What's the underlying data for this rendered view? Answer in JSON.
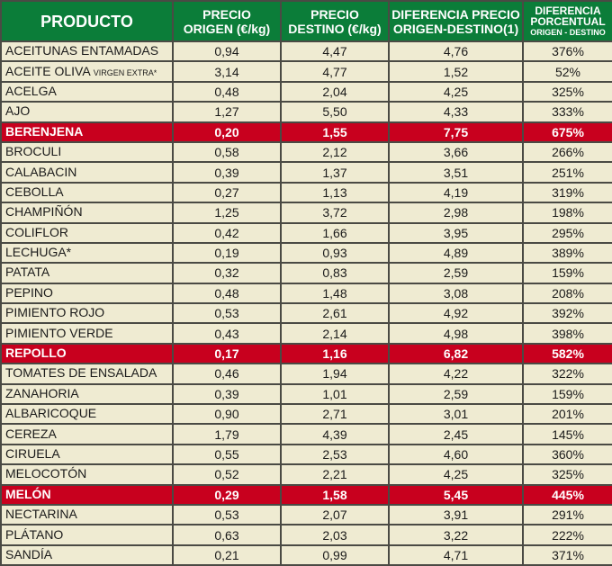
{
  "colors": {
    "header": "#0b7d39",
    "cell": "#efebd2",
    "highlight": "#c8001e"
  },
  "headers": {
    "product": "PRODUCTO",
    "origin_1": "PRECIO",
    "origin_2": "ORIGEN (€/kg)",
    "dest_1": "PRECIO",
    "dest_2": "DESTINO (€/kg)",
    "diff_1": "DIFERENCIA PRECIO",
    "diff_2": "ORIGEN-DESTINO(1)",
    "pct_1": "DIFERENCIA",
    "pct_2": "PORCENTUAL",
    "pct_3": "ORIGEN - DESTINO"
  },
  "rows": [
    {
      "name": "ACEITUNAS ENTAMADAS",
      "suffix": "",
      "origin": "0,94",
      "dest": "4,47",
      "diff": "4,76",
      "pct": "376%",
      "highlight": false
    },
    {
      "name": "ACEITE OLIVA ",
      "suffix": "VIRGEN EXTRA*",
      "origin": "3,14",
      "dest": "4,77",
      "diff": "1,52",
      "pct": "52%",
      "highlight": false
    },
    {
      "name": "ACELGA",
      "suffix": "",
      "origin": "0,48",
      "dest": "2,04",
      "diff": "4,25",
      "pct": "325%",
      "highlight": false
    },
    {
      "name": "AJO",
      "suffix": "",
      "origin": "1,27",
      "dest": "5,50",
      "diff": "4,33",
      "pct": "333%",
      "highlight": false
    },
    {
      "name": "BERENJENA",
      "suffix": "",
      "origin": "0,20",
      "dest": "1,55",
      "diff": "7,75",
      "pct": "675%",
      "highlight": true
    },
    {
      "name": "BROCULI",
      "suffix": "",
      "origin": "0,58",
      "dest": "2,12",
      "diff": "3,66",
      "pct": "266%",
      "highlight": false
    },
    {
      "name": "CALABACIN",
      "suffix": "",
      "origin": "0,39",
      "dest": "1,37",
      "diff": "3,51",
      "pct": "251%",
      "highlight": false
    },
    {
      "name": "CEBOLLA",
      "suffix": "",
      "origin": "0,27",
      "dest": "1,13",
      "diff": "4,19",
      "pct": "319%",
      "highlight": false
    },
    {
      "name": "CHAMPIÑÓN",
      "suffix": "",
      "origin": "1,25",
      "dest": "3,72",
      "diff": "2,98",
      "pct": "198%",
      "highlight": false
    },
    {
      "name": "COLIFLOR",
      "suffix": "",
      "origin": "0,42",
      "dest": "1,66",
      "diff": "3,95",
      "pct": "295%",
      "highlight": false
    },
    {
      "name": "LECHUGA*",
      "suffix": "",
      "origin": "0,19",
      "dest": "0,93",
      "diff": "4,89",
      "pct": "389%",
      "highlight": false
    },
    {
      "name": "PATATA",
      "suffix": "",
      "origin": "0,32",
      "dest": "0,83",
      "diff": "2,59",
      "pct": "159%",
      "highlight": false
    },
    {
      "name": "PEPINO",
      "suffix": "",
      "origin": "0,48",
      "dest": "1,48",
      "diff": "3,08",
      "pct": "208%",
      "highlight": false
    },
    {
      "name": "PIMIENTO ROJO",
      "suffix": "",
      "origin": "0,53",
      "dest": "2,61",
      "diff": "4,92",
      "pct": "392%",
      "highlight": false
    },
    {
      "name": "PIMIENTO VERDE",
      "suffix": "",
      "origin": "0,43",
      "dest": "2,14",
      "diff": "4,98",
      "pct": "398%",
      "highlight": false
    },
    {
      "name": "REPOLLO",
      "suffix": "",
      "origin": "0,17",
      "dest": "1,16",
      "diff": "6,82",
      "pct": "582%",
      "highlight": true
    },
    {
      "name": "TOMATES DE ENSALADA",
      "suffix": "",
      "origin": "0,46",
      "dest": "1,94",
      "diff": "4,22",
      "pct": "322%",
      "highlight": false
    },
    {
      "name": "ZANAHORIA",
      "suffix": "",
      "origin": "0,39",
      "dest": "1,01",
      "diff": "2,59",
      "pct": "159%",
      "highlight": false
    },
    {
      "name": "ALBARICOQUE",
      "suffix": "",
      "origin": "0,90",
      "dest": "2,71",
      "diff": "3,01",
      "pct": "201%",
      "highlight": false
    },
    {
      "name": "CEREZA",
      "suffix": "",
      "origin": "1,79",
      "dest": "4,39",
      "diff": "2,45",
      "pct": "145%",
      "highlight": false
    },
    {
      "name": "CIRUELA",
      "suffix": "",
      "origin": "0,55",
      "dest": "2,53",
      "diff": "4,60",
      "pct": "360%",
      "highlight": false
    },
    {
      "name": "MELOCOTÓN",
      "suffix": "",
      "origin": "0,52",
      "dest": "2,21",
      "diff": "4,25",
      "pct": "325%",
      "highlight": false
    },
    {
      "name": "MELÓN",
      "suffix": "",
      "origin": "0,29",
      "dest": "1,58",
      "diff": "5,45",
      "pct": "445%",
      "highlight": true
    },
    {
      "name": "NECTARINA",
      "suffix": "",
      "origin": "0,53",
      "dest": "2,07",
      "diff": "3,91",
      "pct": "291%",
      "highlight": false
    },
    {
      "name": "PLÁTANO",
      "suffix": "",
      "origin": "0,63",
      "dest": "2,03",
      "diff": "3,22",
      "pct": "222%",
      "highlight": false
    },
    {
      "name": "SANDÍA",
      "suffix": "",
      "origin": "0,21",
      "dest": "0,99",
      "diff": "4,71",
      "pct": "371%",
      "highlight": false
    }
  ]
}
